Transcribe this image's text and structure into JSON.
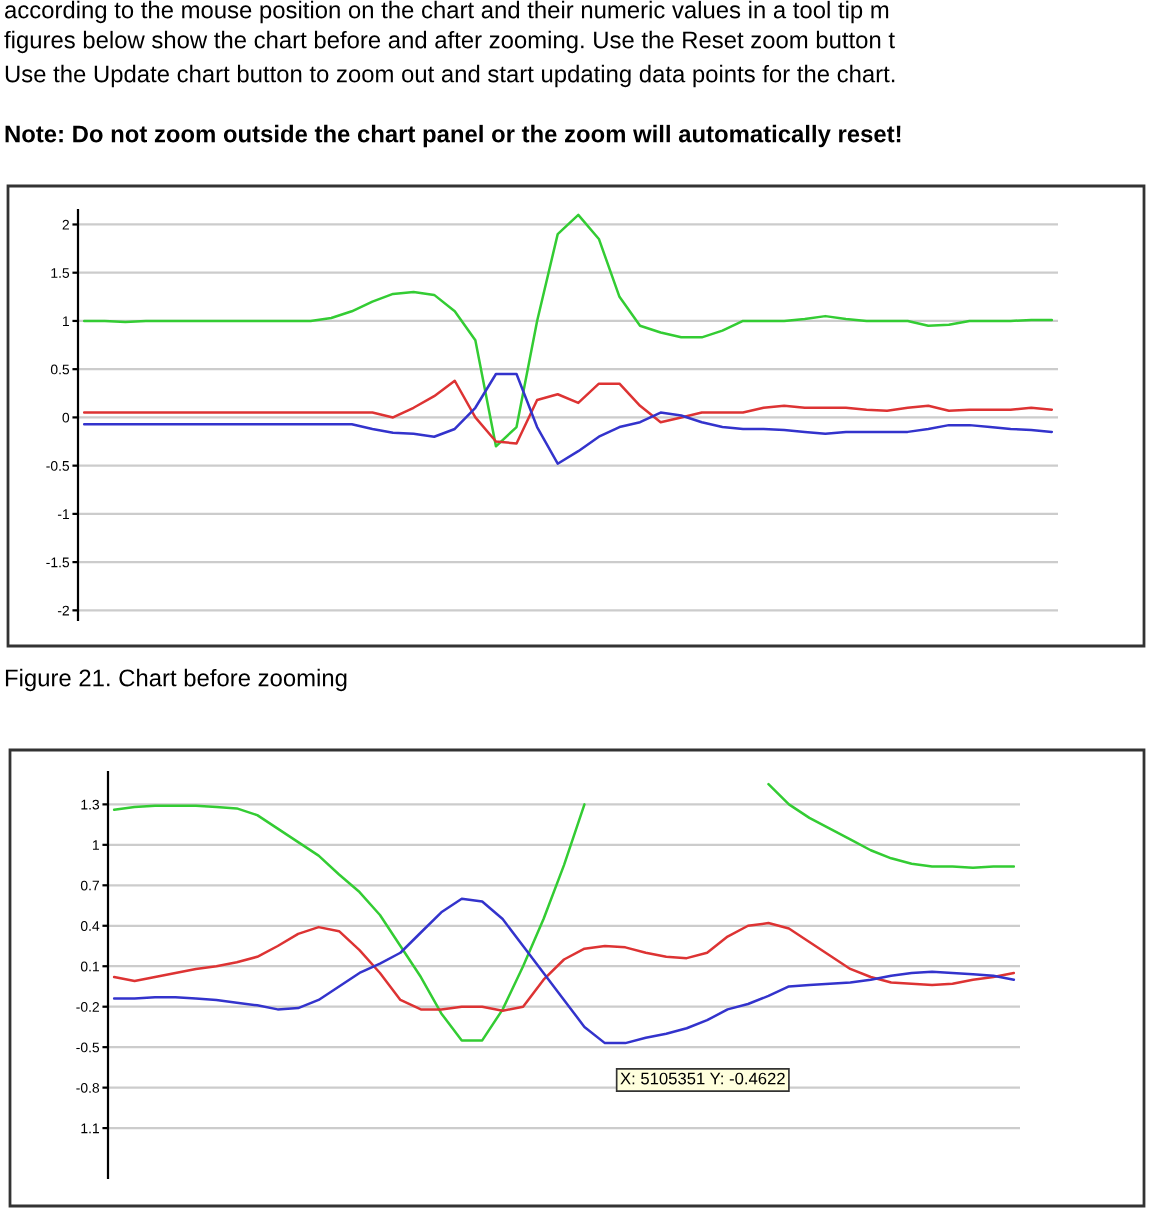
{
  "chart_data": [
    {
      "type": "line",
      "categories": [
        null,
        null,
        null,
        null,
        null,
        null,
        null,
        null,
        null,
        null,
        null,
        null,
        null,
        null,
        null,
        null,
        null,
        null,
        null,
        null,
        null,
        null,
        null,
        null,
        null,
        null,
        null,
        null,
        null,
        null,
        null,
        null,
        null,
        null,
        null,
        null,
        null,
        null,
        null,
        null,
        null,
        null,
        null,
        null,
        null,
        null,
        null,
        null
      ],
      "series": [
        {
          "color": "#33cc33",
          "values": [
            1.0,
            1.0,
            0.99,
            1.0,
            1.0,
            1.0,
            1.0,
            1.0,
            1.0,
            1.0,
            1.0,
            1.0,
            1.03,
            1.1,
            1.2,
            1.28,
            1.3,
            1.27,
            1.1,
            0.8,
            -0.3,
            -0.1,
            1.0,
            1.9,
            2.1,
            1.85,
            1.25,
            0.95,
            0.88,
            0.83,
            0.83,
            0.9,
            1.0,
            1.0,
            1.0,
            1.02,
            1.05,
            1.02,
            1.0,
            1.0,
            1.0,
            0.95,
            0.96,
            1.0,
            1.0,
            1.0,
            1.01,
            1.01
          ]
        },
        {
          "color": "#dd3333",
          "values": [
            0.05,
            0.05,
            0.05,
            0.05,
            0.05,
            0.05,
            0.05,
            0.05,
            0.05,
            0.05,
            0.05,
            0.05,
            0.05,
            0.05,
            0.05,
            0.0,
            0.1,
            0.22,
            0.38,
            0.0,
            -0.25,
            -0.27,
            0.18,
            0.24,
            0.15,
            0.35,
            0.35,
            0.12,
            -0.05,
            0.0,
            0.05,
            0.05,
            0.05,
            0.1,
            0.12,
            0.1,
            0.1,
            0.1,
            0.08,
            0.07,
            0.1,
            0.12,
            0.07,
            0.08,
            0.08,
            0.08,
            0.1,
            0.08
          ]
        },
        {
          "color": "#3333cc",
          "values": [
            -0.07,
            -0.07,
            -0.07,
            -0.07,
            -0.07,
            -0.07,
            -0.07,
            -0.07,
            -0.07,
            -0.07,
            -0.07,
            -0.07,
            -0.07,
            -0.07,
            -0.12,
            -0.16,
            -0.17,
            -0.2,
            -0.12,
            0.1,
            0.45,
            0.45,
            -0.1,
            -0.48,
            -0.35,
            -0.2,
            -0.1,
            -0.05,
            0.05,
            0.02,
            -0.05,
            -0.1,
            -0.12,
            -0.12,
            -0.13,
            -0.15,
            -0.17,
            -0.15,
            -0.15,
            -0.15,
            -0.15,
            -0.12,
            -0.08,
            -0.08,
            -0.1,
            -0.12,
            -0.13,
            -0.15
          ]
        }
      ],
      "ylim": [
        -2.1,
        2.15
      ],
      "yticks": [
        -2,
        -1.5,
        -1,
        -0.5,
        0,
        0.5,
        1,
        1.5,
        2
      ],
      "grid": "y",
      "tick_labels": "y",
      "annotations": [
        "according to the mouse position on the chart and their numeric values in a tool tip m",
        "figures below show the chart before and after zooming. Use the Reset zoom button t",
        "Use the Update chart button to zoom out and start updating data points for the chart.",
        "Note: Do not zoom outside the chart panel or the zoom will automatically reset!",
        "Figure 21. Chart before zooming"
      ]
    },
    {
      "type": "line",
      "categories": [
        null,
        null,
        null,
        null,
        null,
        null,
        null,
        null,
        null,
        null,
        null,
        null,
        null,
        null,
        null,
        null,
        null,
        null,
        null,
        null,
        null,
        null,
        null,
        null,
        null,
        null,
        null,
        null,
        null,
        null,
        null,
        null,
        null,
        null,
        null,
        null,
        null,
        null,
        null,
        null,
        null,
        null,
        null,
        null,
        null
      ],
      "series": [
        {
          "color": "#33cc33",
          "values": [
            1.26,
            1.28,
            1.29,
            1.29,
            1.29,
            1.28,
            1.27,
            1.22,
            1.12,
            1.02,
            0.92,
            0.78,
            0.65,
            0.48,
            0.25,
            0.02,
            -0.25,
            -0.45,
            -0.45,
            -0.22,
            0.1,
            0.45,
            0.85,
            1.3,
            null,
            null,
            null,
            null,
            null,
            null,
            null,
            null,
            1.45,
            1.3,
            1.2,
            1.12,
            1.04,
            0.96,
            0.9,
            0.86,
            0.84,
            0.84,
            0.83,
            0.84,
            0.84
          ]
        },
        {
          "color": "#dd3333",
          "values": [
            0.02,
            -0.01,
            0.02,
            0.05,
            0.08,
            0.1,
            0.13,
            0.17,
            0.25,
            0.34,
            0.39,
            0.36,
            0.22,
            0.05,
            -0.15,
            -0.22,
            -0.22,
            -0.2,
            -0.2,
            -0.23,
            -0.2,
            0.0,
            0.15,
            0.23,
            0.25,
            0.24,
            0.2,
            0.17,
            0.16,
            0.2,
            0.32,
            0.4,
            0.42,
            0.38,
            0.28,
            0.18,
            0.08,
            0.02,
            -0.02,
            -0.03,
            -0.04,
            -0.03,
            0.0,
            0.02,
            0.05
          ]
        },
        {
          "color": "#3333cc",
          "values": [
            -0.14,
            -0.14,
            -0.13,
            -0.13,
            -0.14,
            -0.15,
            -0.17,
            -0.19,
            -0.22,
            -0.21,
            -0.15,
            -0.05,
            0.05,
            0.12,
            0.2,
            0.35,
            0.5,
            0.6,
            0.58,
            0.45,
            0.25,
            0.05,
            -0.15,
            -0.35,
            -0.47,
            -0.47,
            -0.43,
            -0.4,
            -0.36,
            -0.3,
            -0.22,
            -0.18,
            -0.12,
            -0.05,
            -0.04,
            -0.03,
            -0.02,
            0.0,
            0.03,
            0.05,
            0.06,
            0.05,
            0.04,
            0.03,
            0.0
          ]
        }
      ],
      "ylim": [
        -1.47,
        1.54
      ],
      "yticks": [
        {
          "value": -1.1,
          "label": "1.1"
        },
        -0.8,
        -0.5,
        -0.2,
        0.1,
        0.4,
        0.7,
        1,
        1.3
      ],
      "grid": "y",
      "tick_labels": "y",
      "annotations": [
        "X: 5105351 Y: -0.4622"
      ]
    }
  ]
}
